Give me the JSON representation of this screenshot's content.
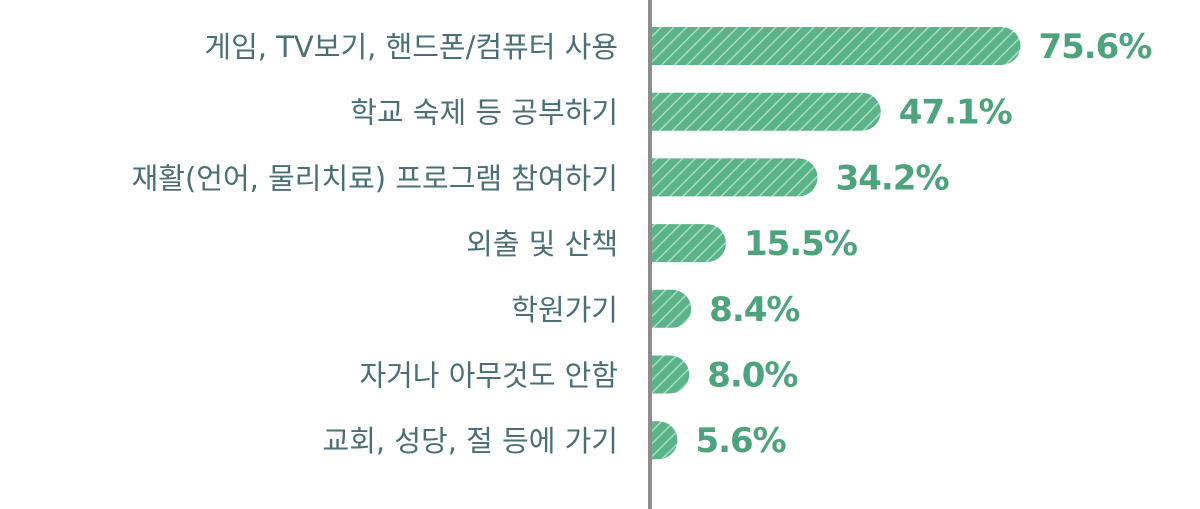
{
  "chart_data": {
    "type": "bar",
    "orientation": "horizontal",
    "title": "",
    "xlabel": "",
    "ylabel": "",
    "categories": [
      "게임, TV보기, 핸드폰/컴퓨터 사용",
      "학교 숙제 등 공부하기",
      "재활(언어, 물리치료) 프로그램 참여하기",
      "외출 및 산책",
      "학원가기",
      "자거나 아무것도 안함",
      "교회, 성당, 절 등에 가기"
    ],
    "values": [
      75.6,
      47.1,
      34.2,
      15.5,
      8.4,
      8.0,
      5.6
    ],
    "value_labels": [
      "75.6%",
      "47.1%",
      "34.2%",
      "15.5%",
      "8.4%",
      "8.0%",
      "5.6%"
    ],
    "unit": "%",
    "xlim": [
      0,
      100
    ],
    "grid": false,
    "legend": "none",
    "colors": {
      "bar": "#5bb38a",
      "bar_hatch": "#a9dcc1",
      "value_text": "#4da37c",
      "label_text": "#4a6f75",
      "axis": "#8c8c8c"
    }
  }
}
